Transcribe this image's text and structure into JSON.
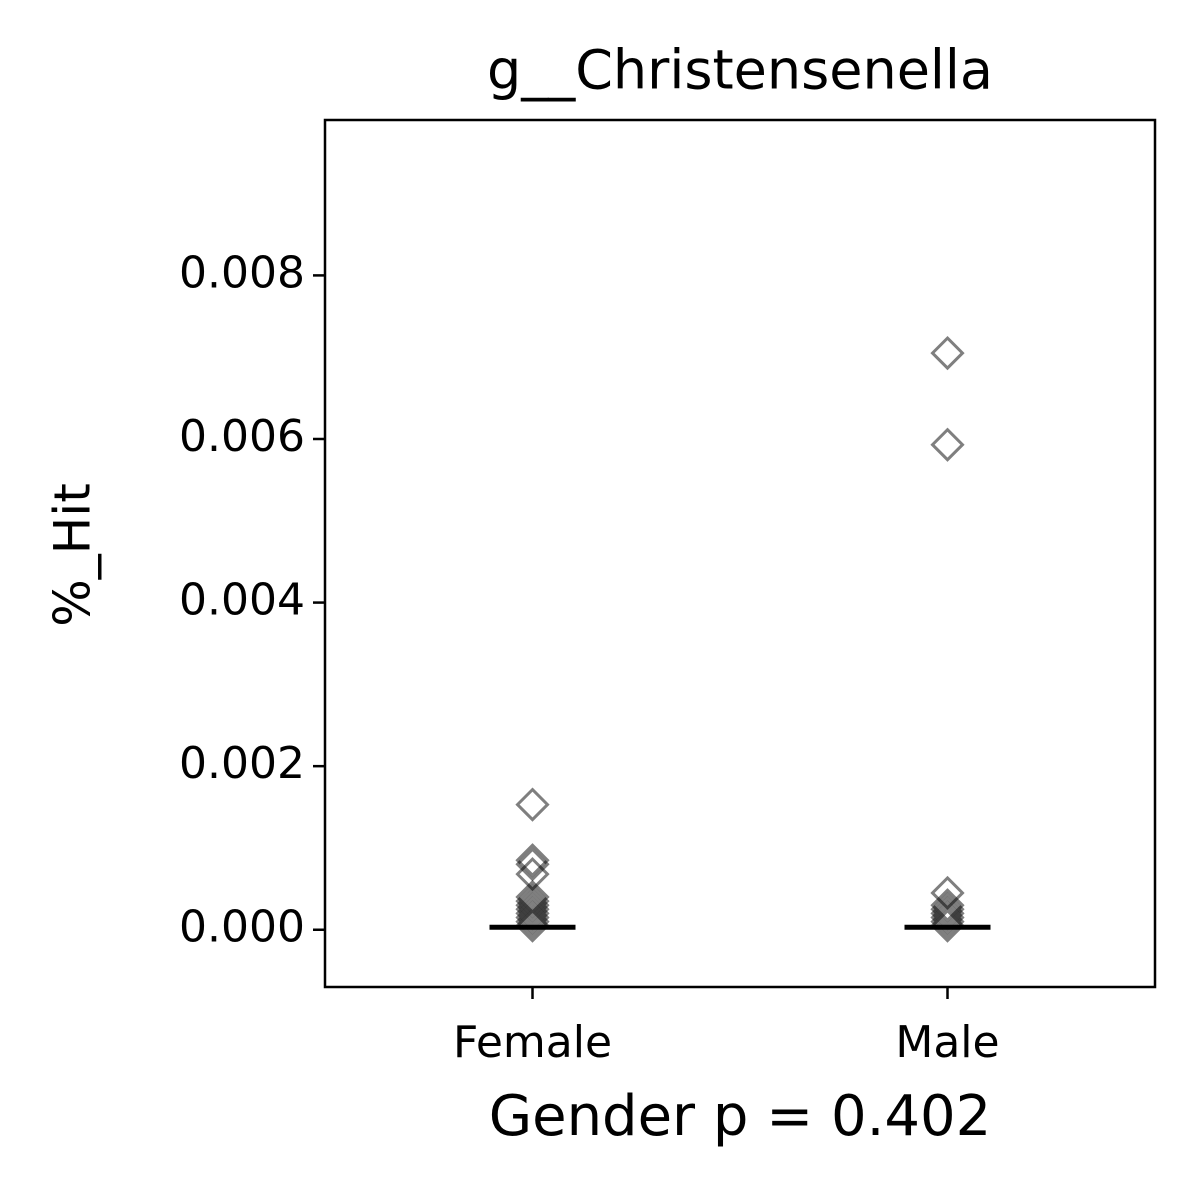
{
  "chart_data": {
    "type": "strip",
    "title": "g__Christensenella",
    "x_label": "Gender p = 0.402",
    "y_label": "%_Hit",
    "categories": [
      "Female",
      "Male"
    ],
    "values": [
      [
        0.00153,
        0.00085,
        0.0008,
        0.00068,
        0.0004,
        0.00035,
        0.0003,
        0.00025,
        0.0002,
        0.00015,
        0.0001,
        5e-05
      ],
      [
        0.00705,
        0.00593,
        0.00045,
        0.0003,
        0.00025,
        0.0002,
        0.00015,
        0.0001,
        5e-05
      ]
    ],
    "medians": [
      3e-05,
      3e-05
    ],
    "color": "#000000",
    "ylim": [
      -0.0007,
      0.0099
    ],
    "yticks": [
      {
        "value": 0,
        "label": "0.000"
      },
      {
        "value": 0.002,
        "label": "0.002"
      },
      {
        "value": 0.004,
        "label": "0.004"
      },
      {
        "value": 0.006,
        "label": "0.006"
      },
      {
        "value": 0.008,
        "label": "0.008"
      }
    ],
    "grid": false
  }
}
